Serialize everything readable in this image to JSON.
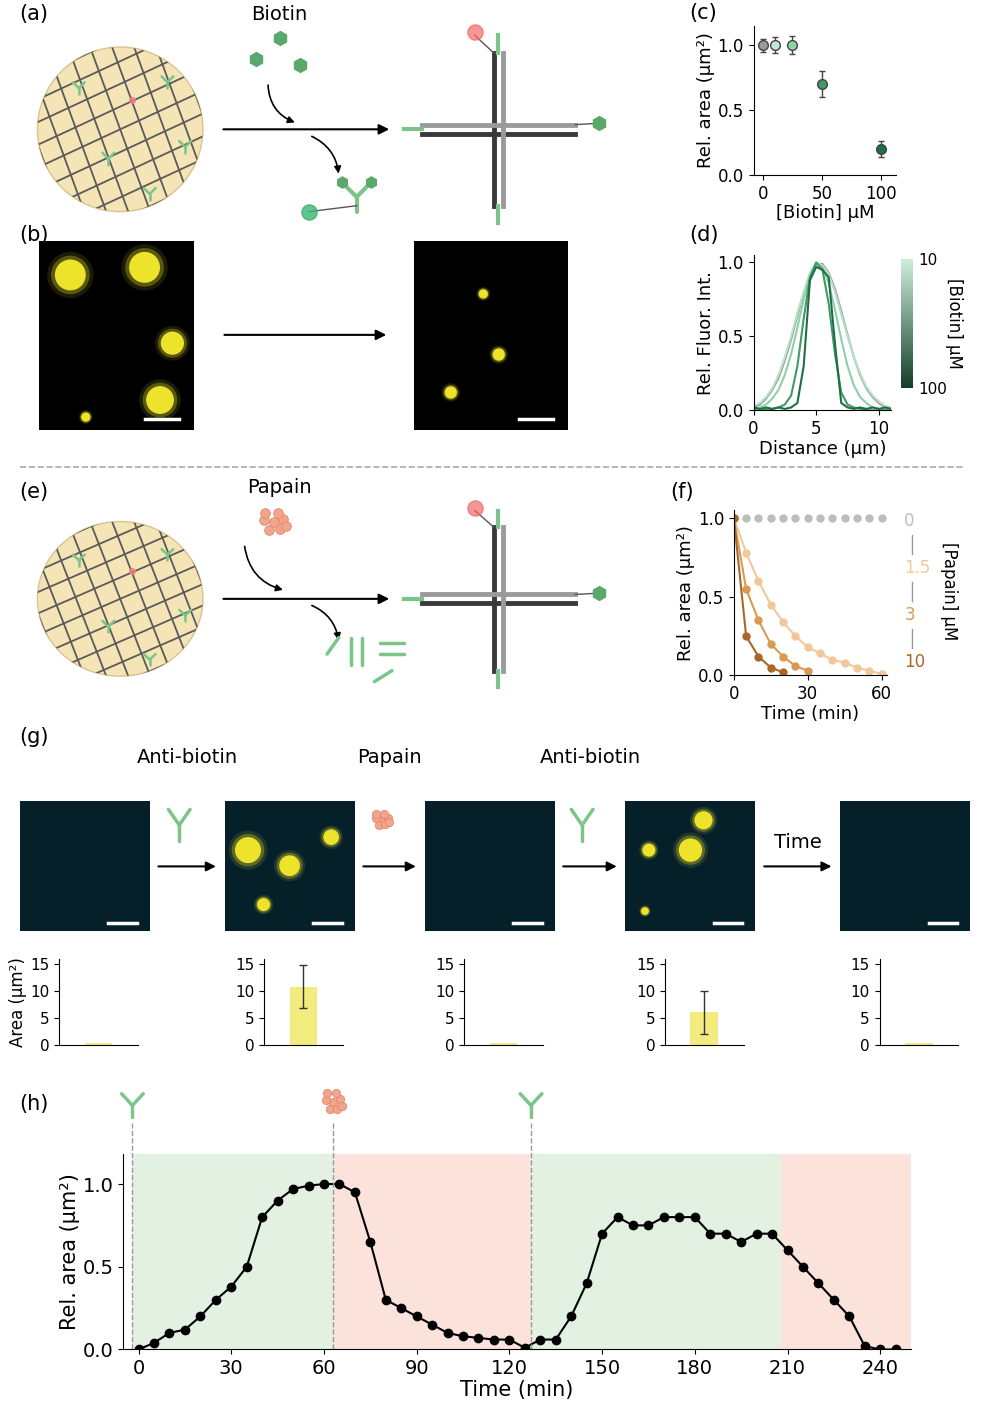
{
  "schematics": [
    {
      "panel_label": "(a)",
      "reagent": "Biotin"
    },
    {
      "panel_label": "(e)",
      "reagent": "Papain"
    }
  ],
  "micrographs": [
    {
      "panel_label": "(b)"
    },
    {
      "panel_label": "(g)",
      "steps": [
        "Anti-biotin",
        "Papain",
        "Anti-biotin",
        "Time"
      ]
    }
  ],
  "chart_data": [
    {
      "panel_label": "(c)",
      "type": "scatter",
      "x": [
        0,
        10,
        25,
        50,
        100
      ],
      "values": [
        1.0,
        1.0,
        1.0,
        0.7,
        0.2
      ],
      "errors": [
        0.05,
        0.06,
        0.07,
        0.1,
        0.06
      ],
      "colors": [
        "#9a9a9a",
        "#c3e8d2",
        "#8fd2aa",
        "#3f9a68",
        "#1f6e45"
      ],
      "marker": "circle",
      "xlabel": "[Biotin] μM",
      "ylabel": "Rel. area (μm²)",
      "xlim": [
        -8,
        113
      ],
      "ylim": [
        0,
        1.15
      ],
      "xticks": [
        0,
        50,
        100
      ],
      "yticks": [
        {
          "value": 0,
          "label": "0.0"
        },
        0.5,
        {
          "value": 1,
          "label": "1.0"
        }
      ]
    },
    {
      "panel_label": "(d)",
      "type": "line",
      "x": [
        0,
        0.5,
        1,
        1.5,
        2,
        2.5,
        3,
        3.5,
        4,
        4.5,
        5,
        5.5,
        6,
        6.5,
        7,
        7.5,
        8,
        8.5,
        9,
        9.5,
        10,
        10.5,
        11
      ],
      "series": [
        {
          "color": "#999999",
          "values": [
            0.02,
            0.04,
            0.08,
            0.14,
            0.22,
            0.34,
            0.48,
            0.64,
            0.79,
            0.92,
            0.99,
            0.99,
            0.93,
            0.82,
            0.67,
            0.51,
            0.36,
            0.24,
            0.15,
            0.09,
            0.05,
            0.02,
            0.01
          ]
        },
        {
          "color": "#b5e3c8",
          "values": [
            0.03,
            0.05,
            0.09,
            0.15,
            0.24,
            0.36,
            0.5,
            0.66,
            0.8,
            0.93,
            1.0,
            0.98,
            0.92,
            0.8,
            0.65,
            0.5,
            0.36,
            0.25,
            0.16,
            0.1,
            0.06,
            0.03,
            0.02
          ]
        },
        {
          "color": "#8cd1a8",
          "values": [
            0.01,
            0.02,
            0.04,
            0.08,
            0.14,
            0.24,
            0.38,
            0.56,
            0.75,
            0.9,
            0.99,
            0.97,
            0.86,
            0.68,
            0.48,
            0.3,
            0.17,
            0.09,
            0.05,
            0.02,
            0.01,
            0.01,
            0.0
          ]
        },
        {
          "color": "#3f9a68",
          "values": [
            0.0,
            0.0,
            0.01,
            0.01,
            0.02,
            0.04,
            0.1,
            0.3,
            0.62,
            0.9,
            1.0,
            0.95,
            0.72,
            0.38,
            0.12,
            0.04,
            0.02,
            0.01,
            0.0,
            0.0,
            0.0,
            0.0,
            0.0
          ]
        },
        {
          "color": "#1f6e45",
          "values": [
            0.02,
            0.01,
            0.02,
            0.01,
            0.02,
            0.01,
            0.02,
            0.05,
            0.3,
            0.88,
            0.97,
            0.95,
            0.9,
            0.45,
            0.05,
            0.02,
            0.01,
            0.02,
            0.01,
            0.02,
            0.01,
            0.02,
            0.01
          ]
        }
      ],
      "xlabel": "Distance (μm)",
      "ylabel": "Rel. Fluor. Int.",
      "xlim": [
        0,
        11
      ],
      "ylim": [
        0,
        1.05
      ],
      "xticks": [
        0,
        5,
        10
      ],
      "yticks": [
        {
          "value": 0,
          "label": "0.0"
        },
        0.5,
        {
          "value": 1,
          "label": "1.0"
        }
      ],
      "colorbar": {
        "label": "[Biotin] μM",
        "ticks": [
          10,
          100
        ],
        "colors": [
          "#cdeedb",
          "#123f28"
        ]
      }
    },
    {
      "panel_label": "(f)",
      "type": "line",
      "marker": "circle",
      "series": [
        {
          "name": "0",
          "color": "#bdbdbd",
          "line_style": "none",
          "x": [
            0,
            5,
            10,
            15,
            20,
            25,
            30,
            35,
            40,
            45,
            50,
            55,
            60
          ],
          "values": [
            1.0,
            1.0,
            1.0,
            1.0,
            1.0,
            1.0,
            1.0,
            1.0,
            1.0,
            1.0,
            1.0,
            1.0,
            1.0
          ]
        },
        {
          "name": "1.5",
          "color": "#f0c89a",
          "line_style": "solid",
          "x": [
            0,
            5,
            10,
            15,
            20,
            25,
            30,
            35,
            40,
            45,
            50,
            55,
            60
          ],
          "values": [
            1.0,
            0.78,
            0.6,
            0.45,
            0.34,
            0.25,
            0.18,
            0.14,
            0.1,
            0.08,
            0.05,
            0.03,
            0.01
          ]
        },
        {
          "name": "3",
          "color": "#d99a50",
          "line_style": "solid",
          "x": [
            0,
            5,
            10,
            15,
            20,
            25,
            30
          ],
          "values": [
            1.0,
            0.55,
            0.35,
            0.2,
            0.12,
            0.06,
            0.03
          ]
        },
        {
          "name": "10",
          "color": "#a8682a",
          "line_style": "solid",
          "x": [
            0,
            5,
            10,
            15,
            20
          ],
          "values": [
            1.0,
            0.25,
            0.12,
            0.05,
            0.02
          ]
        }
      ],
      "legend_title": "[Papain] μM",
      "xlabel": "Time (min)",
      "ylabel": "Rel. area (μm²)",
      "xlim": [
        0,
        62
      ],
      "ylim": [
        0,
        1.05
      ],
      "xticks": [
        0,
        30,
        60
      ],
      "yticks": [
        {
          "value": 0,
          "label": "0.0"
        },
        0.5,
        {
          "value": 1,
          "label": "1.0"
        }
      ]
    },
    {
      "type": "bar",
      "values": [
        0.3,
        10.8,
        0.2,
        6.0,
        0.2
      ],
      "errors": [
        0,
        4,
        0,
        4,
        0
      ],
      "color": "#f2ec7e",
      "ylabel": "Area (μm²)",
      "ylim": [
        0,
        16
      ],
      "yticks": [
        0,
        5,
        10,
        15
      ],
      "tick_labels": "y"
    },
    {
      "panel_label": "(h)",
      "type": "line",
      "color": "#000000",
      "marker": "circle",
      "x": [
        0,
        5,
        10,
        15,
        20,
        25,
        30,
        35,
        40,
        45,
        50,
        55,
        60,
        65,
        70,
        75,
        80,
        85,
        90,
        95,
        100,
        105,
        110,
        115,
        120,
        125,
        130,
        135,
        140,
        145,
        150,
        155,
        160,
        165,
        170,
        175,
        180,
        185,
        190,
        195,
        200,
        205,
        210,
        215,
        220,
        225,
        230,
        235,
        240,
        245
      ],
      "values": [
        0.0,
        0.04,
        0.1,
        0.12,
        0.2,
        0.3,
        0.38,
        0.5,
        0.8,
        0.9,
        0.97,
        0.99,
        1.0,
        1.0,
        0.95,
        0.65,
        0.3,
        0.25,
        0.2,
        0.15,
        0.1,
        0.08,
        0.07,
        0.06,
        0.06,
        0.01,
        0.06,
        0.06,
        0.2,
        0.4,
        0.7,
        0.8,
        0.75,
        0.75,
        0.8,
        0.8,
        0.8,
        0.7,
        0.7,
        0.65,
        0.7,
        0.7,
        0.6,
        0.5,
        0.4,
        0.3,
        0.2,
        0.02,
        0.0,
        0.0
      ],
      "regions": [
        {
          "start": -2,
          "end": 63,
          "color": "#e3f1e3"
        },
        {
          "start": 63,
          "end": 127,
          "color": "#fbe3dc"
        },
        {
          "start": 127,
          "end": 208,
          "color": "#e3f1e3"
        },
        {
          "start": 208,
          "end": 250,
          "color": "#fbe3dc"
        }
      ],
      "antibody_events": [
        -2,
        127
      ],
      "papain_events": [
        63
      ],
      "xlabel": "Time (min)",
      "ylabel": "Rel. area (μm²)",
      "xlim": [
        -5,
        250
      ],
      "ylim": [
        0,
        1.18
      ],
      "xticks": [
        0,
        30,
        60,
        90,
        120,
        150,
        180,
        210,
        240
      ],
      "yticks": [
        {
          "value": 0,
          "label": "0.0"
        },
        0.5,
        {
          "value": 1,
          "label": "1.0"
        }
      ]
    }
  ]
}
